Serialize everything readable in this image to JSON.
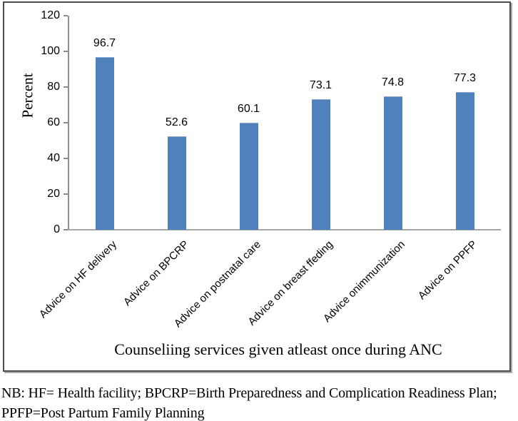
{
  "chart_data": {
    "type": "bar",
    "title": "",
    "categories": [
      "Advice on HF delivery",
      "Advice on BPCRP",
      "Advice on postnatal care",
      "Advice on breast ffeding",
      "Advice onimmunization",
      "Advice on PPFP"
    ],
    "values": [
      96.7,
      52.6,
      60.1,
      73.1,
      74.8,
      77.3
    ],
    "value_labels_shown": true,
    "xlabel": "Counseliing services given atleast once during ANC",
    "ylabel": "Percent",
    "ylim": [
      0,
      120
    ],
    "yticks": [
      0,
      20,
      40,
      60,
      80,
      100,
      120
    ],
    "grid": false,
    "legend_position": "none",
    "bar_color": "#4f81bd",
    "bar_top_edge_color": "#8aabd3",
    "y_axis_color": "#8c8c8c",
    "x_axis_color": "#a6a6a6",
    "text_color": "#000000"
  },
  "note": {
    "line1": "NB: HF= Health facility; BPCRP=Birth Preparedness and Complication Readiness Plan;",
    "line2": "PPFP=Post Partum Family Planning"
  }
}
